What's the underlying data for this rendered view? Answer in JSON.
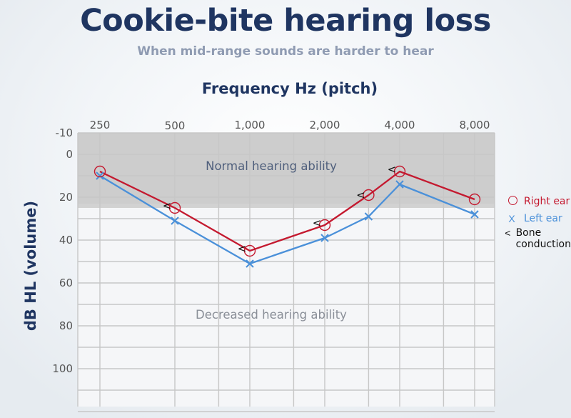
{
  "colors": {
    "title": "#1f3561",
    "subtitle": "#8f9bb2",
    "right_ear": "#c4192f",
    "left_ear": "#4a90d9",
    "normal_band": "#cdcdcd",
    "grid": "#c7c7c7"
  },
  "chart_data": {
    "type": "line",
    "title": "Cookie-bite hearing loss",
    "subtitle": "When mid-range sounds are harder to hear",
    "xlabel": "Frequency Hz (pitch)",
    "ylabel": "dB HL  (volume)",
    "x_ticks": [
      "250",
      "500",
      "1,000",
      "2,000",
      "4,000",
      "8,000"
    ],
    "y_ticks": [
      "-10",
      "0",
      "20",
      "40",
      "60",
      "80",
      "100"
    ],
    "y_tick_values": [
      -10,
      0,
      20,
      40,
      60,
      80,
      100
    ],
    "ylim": [
      -10,
      120
    ],
    "y_inverted": true,
    "x_scale": "log",
    "grid": true,
    "bands": [
      {
        "label": "Normal hearing ability",
        "from": -10,
        "to": 25
      },
      {
        "label": "Decreased hearing ability",
        "from": 25,
        "to": 120
      }
    ],
    "series": [
      {
        "name": "Right ear",
        "marker": "circle",
        "x": [
          250,
          500,
          1000,
          2000,
          3000,
          4000,
          8000
        ],
        "values": [
          8,
          25,
          45,
          33,
          19,
          8,
          21
        ]
      },
      {
        "name": "Left ear",
        "marker": "x",
        "x": [
          250,
          500,
          1000,
          2000,
          3000,
          4000,
          8000
        ],
        "values": [
          10,
          31,
          51,
          39,
          29,
          14,
          28
        ]
      },
      {
        "name": "Bone conduction",
        "marker": "<",
        "x": [
          500,
          1000,
          2000,
          3000,
          4000
        ],
        "values": [
          24,
          44,
          32,
          19,
          7
        ]
      }
    ],
    "legend_position": "right"
  },
  "legend": {
    "right_ear": "Right ear",
    "left_ear": "Left ear",
    "bone_symbol": "<",
    "left_symbol": "X",
    "bone_line1": "Bone",
    "bone_line2": "conduction"
  }
}
